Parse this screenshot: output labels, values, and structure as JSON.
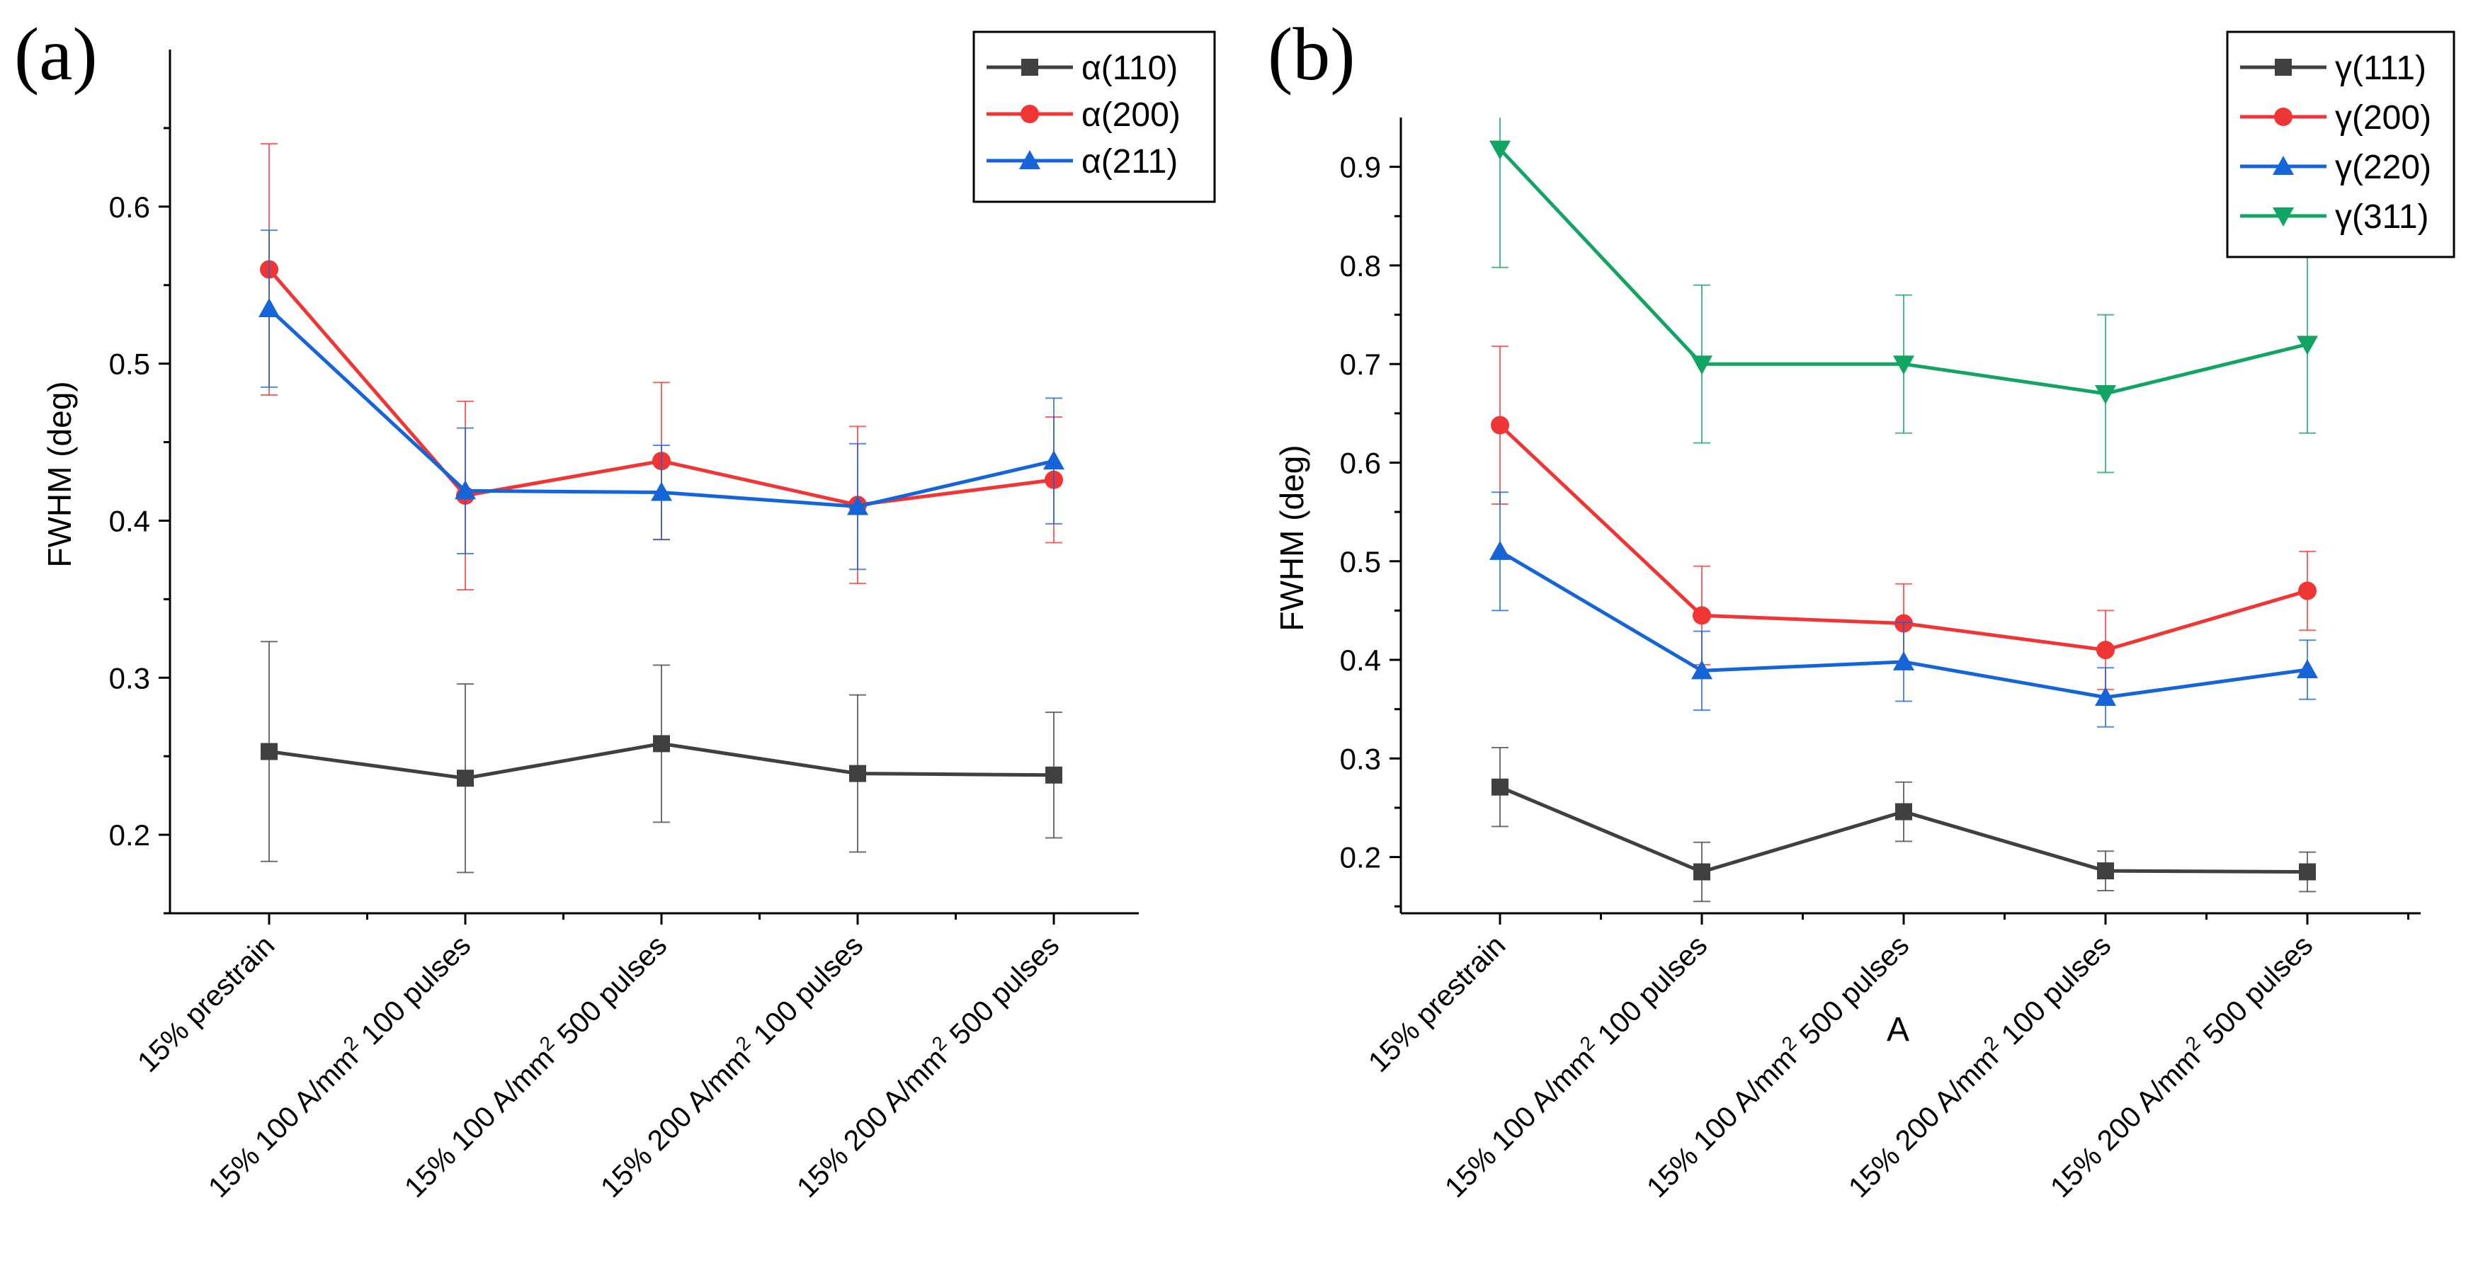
{
  "chart_data": [
    {
      "type": "line",
      "panel_label": "(a)",
      "title": "",
      "xlabel": "",
      "ylabel": "FWHM (deg)",
      "ylim": [
        0.15,
        0.7
      ],
      "yticks": [
        "0.2",
        "0.3",
        "0.4",
        "0.5",
        "0.6"
      ],
      "ytick_values": [
        0.2,
        0.3,
        0.4,
        0.5,
        0.6
      ],
      "legend_position": "top-right",
      "categories": [
        {
          "prefix": "15% prestrain",
          "sup": "",
          "suffix": ""
        },
        {
          "prefix": "15% 100 A/mm",
          "sup": "2",
          "suffix": " 100 pulses"
        },
        {
          "prefix": "15% 100 A/mm",
          "sup": "2",
          "suffix": " 500 pulses"
        },
        {
          "prefix": "15% 200 A/mm",
          "sup": "2",
          "suffix": " 100 pulses"
        },
        {
          "prefix": "15% 200 A/mm",
          "sup": "2",
          "suffix": " 500 pulses"
        }
      ],
      "series": [
        {
          "name": "α(110)",
          "color": "#404040",
          "marker": "square",
          "values": [
            0.253,
            0.236,
            0.258,
            0.239,
            0.238
          ],
          "errors": [
            0.07,
            0.06,
            0.05,
            0.05,
            0.04
          ]
        },
        {
          "name": "α(200)",
          "color": "#f03535",
          "marker": "circle",
          "values": [
            0.56,
            0.416,
            0.438,
            0.41,
            0.426
          ],
          "errors": [
            0.08,
            0.06,
            0.05,
            0.05,
            0.04
          ]
        },
        {
          "name": "α(211)",
          "color": "#1565d8",
          "marker": "triangle-up",
          "values": [
            0.535,
            0.419,
            0.418,
            0.409,
            0.438
          ],
          "errors": [
            0.05,
            0.04,
            0.03,
            0.04,
            0.04
          ]
        }
      ]
    },
    {
      "type": "line",
      "panel_label": "(b)",
      "title": "",
      "xlabel": "A",
      "ylabel": "FWHM (deg)",
      "ylim": [
        0.143,
        0.95
      ],
      "yticks": [
        "0.2",
        "0.3",
        "0.4",
        "0.5",
        "0.6",
        "0.7",
        "0.8",
        "0.9"
      ],
      "ytick_values": [
        0.2,
        0.3,
        0.4,
        0.5,
        0.6,
        0.7,
        0.8,
        0.9
      ],
      "legend_position": "top-right",
      "categories": [
        {
          "prefix": "15% prestrain",
          "sup": "",
          "suffix": ""
        },
        {
          "prefix": "15% 100 A/mm",
          "sup": "2",
          "suffix": " 100 pulses"
        },
        {
          "prefix": "15% 100 A/mm",
          "sup": "2",
          "suffix": " 500 pulses"
        },
        {
          "prefix": "15% 200 A/mm",
          "sup": "2",
          "suffix": " 100 pulses"
        },
        {
          "prefix": "15% 200 A/mm",
          "sup": "2",
          "suffix": " 500 pulses"
        }
      ],
      "series": [
        {
          "name": "γ(111)",
          "color": "#404040",
          "marker": "square",
          "values": [
            0.271,
            0.185,
            0.246,
            0.186,
            0.185
          ],
          "errors": [
            0.04,
            0.03,
            0.03,
            0.02,
            0.02
          ]
        },
        {
          "name": "γ(200)",
          "color": "#f03535",
          "marker": "circle",
          "values": [
            0.638,
            0.445,
            0.437,
            0.41,
            0.47
          ],
          "errors": [
            0.08,
            0.05,
            0.04,
            0.04,
            0.04
          ]
        },
        {
          "name": "γ(220)",
          "color": "#1565d8",
          "marker": "triangle-up",
          "values": [
            0.51,
            0.389,
            0.398,
            0.362,
            0.39
          ],
          "errors": [
            0.06,
            0.04,
            0.04,
            0.03,
            0.03
          ]
        },
        {
          "name": "γ(311)",
          "color": "#12a462",
          "marker": "triangle-down",
          "values": [
            0.918,
            0.7,
            0.7,
            0.67,
            0.72
          ],
          "errors": [
            0.12,
            0.08,
            0.07,
            0.08,
            0.09
          ]
        }
      ]
    }
  ]
}
